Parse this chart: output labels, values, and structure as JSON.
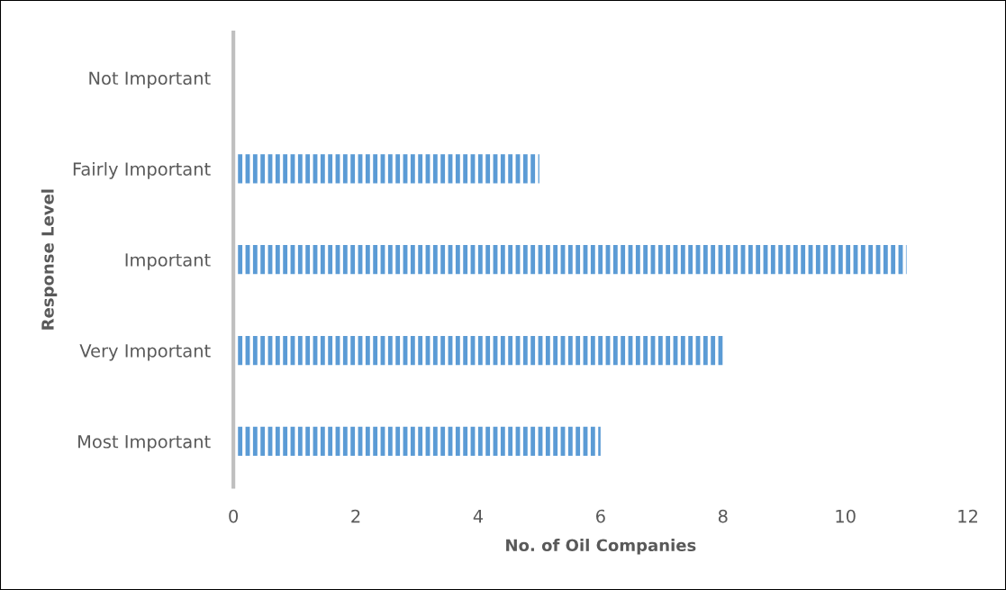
{
  "chart_data": {
    "type": "bar",
    "orientation": "horizontal",
    "xlabel": "No. of Oil Companies",
    "ylabel": "Response Level",
    "categories": [
      "Not Important",
      "Fairly Important",
      "Important",
      "Very Important",
      "Most Important"
    ],
    "values": [
      0,
      5,
      11,
      8,
      6
    ],
    "color": "#5b9bd5",
    "xlim": [
      0,
      12
    ],
    "xticks": [
      0,
      2,
      4,
      6,
      8,
      10,
      12
    ],
    "grid": false,
    "legend": false
  }
}
